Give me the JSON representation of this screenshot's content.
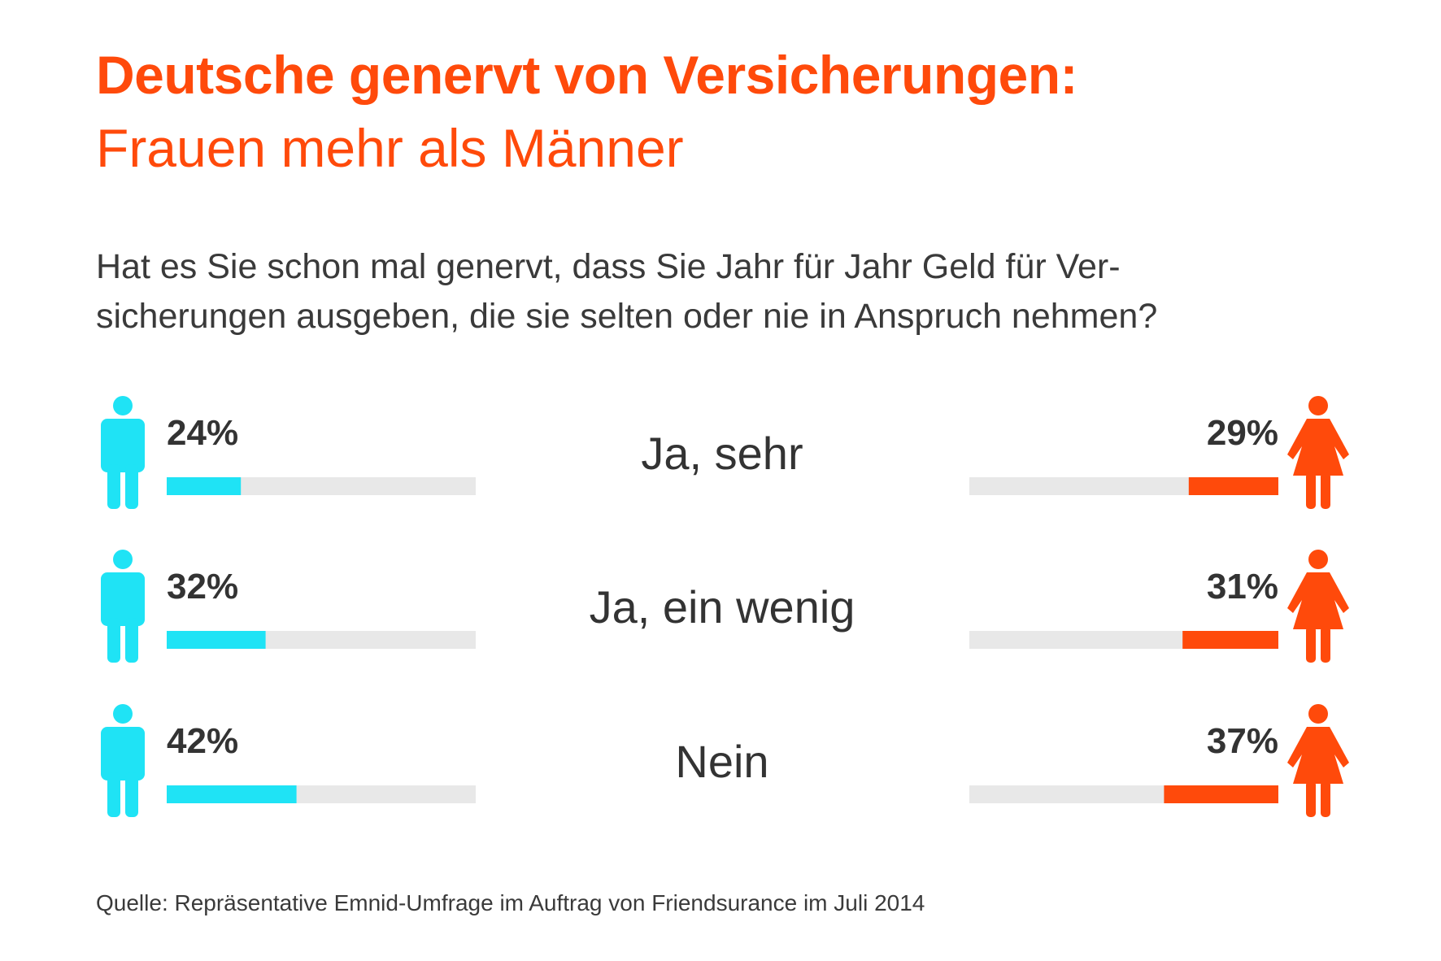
{
  "title": "Deutsche genervt von Versicherungen:",
  "subtitle": "Frauen mehr als Männer",
  "question": {
    "line1": "Hat es Sie schon mal genervt, dass Sie Jahr für Jahr Geld für Ver-",
    "line2": "sicherungen ausgeben, die sie selten oder nie in Anspruch nehmen?"
  },
  "source": "Quelle: Repräsentative Emnid-Umfrage im Auftrag von Friendsurance im Juli 2014",
  "colors": {
    "men": "#1fe3f5",
    "women": "#ff4a0b",
    "track": "#e8e8e8",
    "text": "#333333"
  },
  "icons": {
    "men": "male-person-icon",
    "women": "female-person-icon"
  },
  "chart_data": {
    "type": "bar",
    "categories": [
      "Ja, sehr",
      "Ja, ein wenig",
      "Nein"
    ],
    "value_max": 100,
    "series": [
      {
        "values": [
          24,
          32,
          42
        ],
        "labels": [
          "24%",
          "32%",
          "42%"
        ]
      },
      {
        "values": [
          29,
          31,
          37
        ],
        "labels": [
          "29%",
          "31%",
          "37%"
        ]
      }
    ]
  }
}
